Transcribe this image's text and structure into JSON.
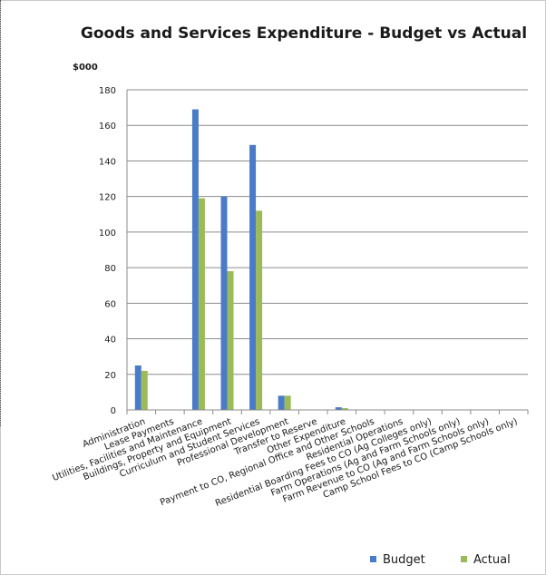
{
  "chart_data": {
    "type": "bar",
    "title": "Goods and Services Expenditure - Budget vs Actual",
    "ylabel": "$000",
    "xlabel": "",
    "ylim": [
      0,
      180
    ],
    "yticks": [
      0,
      20,
      40,
      60,
      80,
      100,
      120,
      140,
      160,
      180
    ],
    "grid": true,
    "legend": "bottom-right",
    "categories": [
      "Administration",
      "Lease Payments",
      "Utilities, Facilities and Maintenance",
      "Buildings, Property and Equipment",
      "Curriculum and Student Services",
      "Professional Development",
      "Transfer to Reserve",
      "Other Expenditure",
      "Payment to CO, Regional Office and Other Schools",
      "Residential Operations",
      "Residential Boarding Fees to CO (Ag Colleges only)",
      "Farm Operations (Ag and Farm Schools only)",
      "Farm Revenue to CO (Ag and Farm Schools only)",
      "Camp School Fees to CO (Camp Schools only)"
    ],
    "series": [
      {
        "name": "Budget",
        "color": "#4a7bc8",
        "values": [
          25,
          0,
          169,
          120,
          149,
          8,
          0,
          1.5,
          0,
          0,
          0,
          0,
          0,
          0
        ]
      },
      {
        "name": "Actual",
        "color": "#9bbb59",
        "values": [
          22,
          0,
          119,
          78,
          112,
          8,
          0,
          1,
          0,
          0,
          0,
          0,
          0,
          0
        ]
      }
    ]
  }
}
